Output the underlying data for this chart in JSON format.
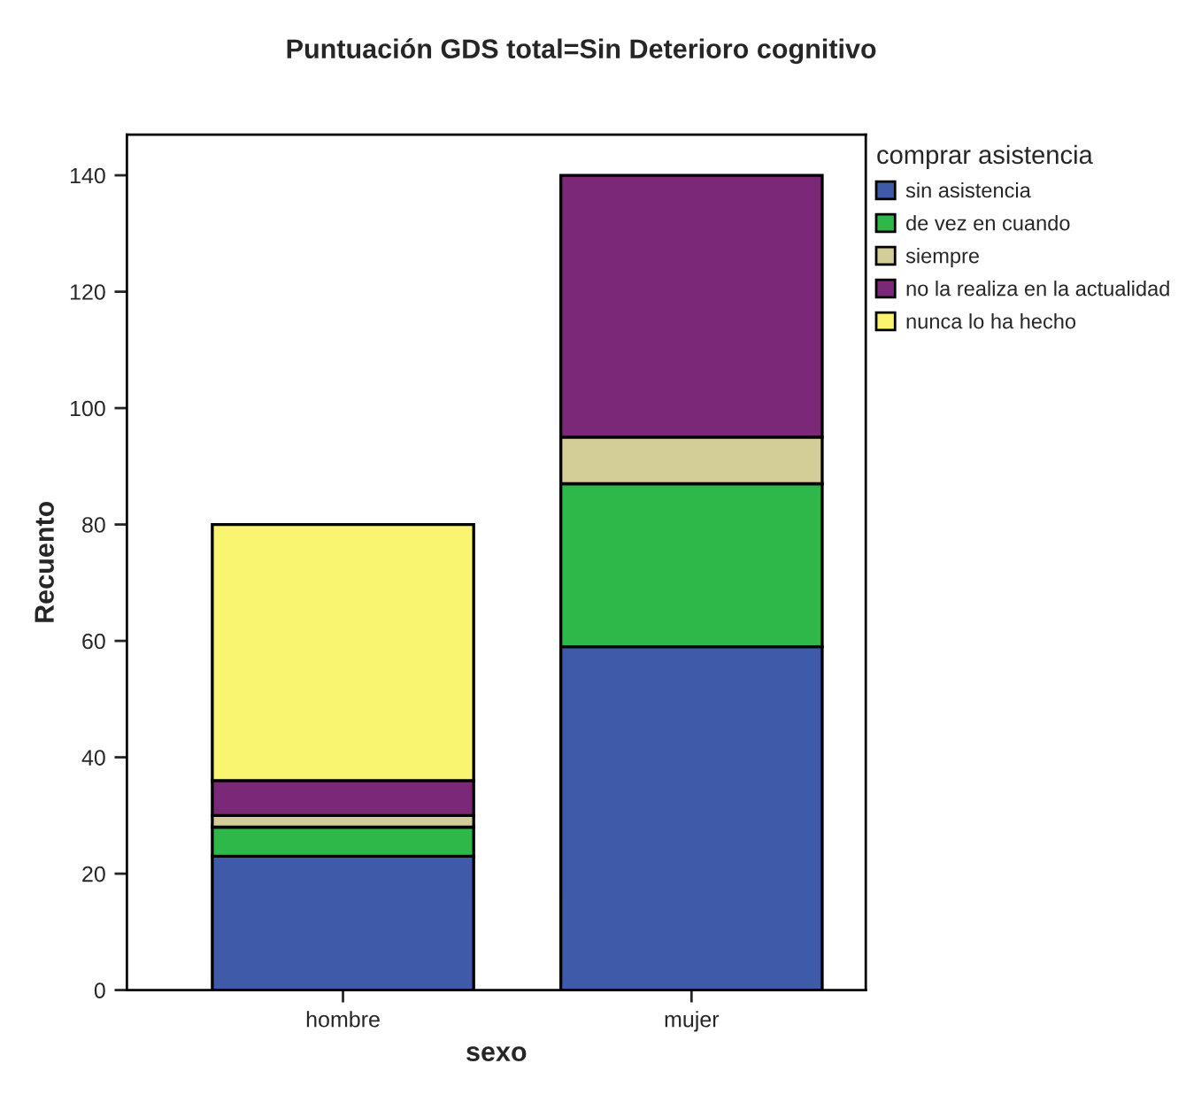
{
  "chart_data": {
    "type": "bar",
    "title": "Puntuación GDS total=Sin Deterioro cognitivo",
    "xlabel": "sexo",
    "ylabel": "Recuento",
    "legend_title": "comprar asistencia",
    "categories": [
      "hombre",
      "mujer"
    ],
    "stacked": true,
    "series": [
      {
        "name": "sin asistencia",
        "color": "#3f5aa8",
        "values": [
          23,
          59
        ]
      },
      {
        "name": "de vez en cuando",
        "color": "#2fb84a",
        "values": [
          5,
          28
        ]
      },
      {
        "name": "siempre",
        "color": "#d3cd98",
        "values": [
          2,
          8
        ]
      },
      {
        "name": "no la realiza en la actualidad",
        "color": "#7a2877",
        "values": [
          6,
          45
        ]
      },
      {
        "name": "nunca lo ha hecho",
        "color": "#f9f571",
        "values": [
          44,
          null
        ]
      }
    ],
    "ylim": [
      0,
      147
    ],
    "yticks": [
      0,
      20,
      40,
      60,
      80,
      100,
      120,
      140
    ],
    "grid": false,
    "legend": "top right"
  }
}
